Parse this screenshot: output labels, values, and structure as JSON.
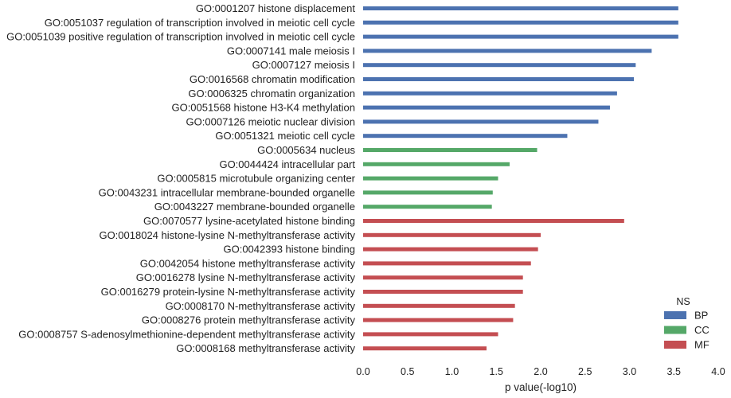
{
  "chart_data": {
    "type": "bar",
    "orientation": "horizontal",
    "xlabel": "p value(-log10)",
    "xlim": [
      0,
      4.0
    ],
    "xticks": [
      "0.0",
      "0.5",
      "1.0",
      "1.5",
      "2.0",
      "2.5",
      "3.0",
      "3.5",
      "4.0"
    ],
    "grid": false,
    "legend": {
      "title": "NS",
      "placement": "bottom-right",
      "entries": [
        {
          "name": "BP",
          "color": "#4c72b0"
        },
        {
          "name": "CC",
          "color": "#55a868"
        },
        {
          "name": "MF",
          "color": "#c44e52"
        }
      ]
    },
    "bars": [
      {
        "label": "GO:0001207 histone displacement",
        "value": 3.55,
        "group": "BP"
      },
      {
        "label": "GO:0051037 regulation of transcription involved in meiotic cell cycle",
        "value": 3.55,
        "group": "BP"
      },
      {
        "label": "GO:0051039 positive regulation of transcription involved in meiotic cell cycle",
        "value": 3.55,
        "group": "BP"
      },
      {
        "label": "GO:0007141 male meiosis I",
        "value": 3.25,
        "group": "BP"
      },
      {
        "label": "GO:0007127 meiosis I",
        "value": 3.07,
        "group": "BP"
      },
      {
        "label": "GO:0016568 chromatin modification",
        "value": 3.05,
        "group": "BP"
      },
      {
        "label": "GO:0006325 chromatin organization",
        "value": 2.86,
        "group": "BP"
      },
      {
        "label": "GO:0051568 histone H3-K4 methylation",
        "value": 2.78,
        "group": "BP"
      },
      {
        "label": "GO:0007126 meiotic nuclear division",
        "value": 2.65,
        "group": "BP"
      },
      {
        "label": "GO:0051321 meiotic cell cycle",
        "value": 2.3,
        "group": "BP"
      },
      {
        "label": "GO:0005634 nucleus",
        "value": 1.96,
        "group": "CC"
      },
      {
        "label": "GO:0044424 intracellular part",
        "value": 1.65,
        "group": "CC"
      },
      {
        "label": "GO:0005815 microtubule organizing center",
        "value": 1.52,
        "group": "CC"
      },
      {
        "label": "GO:0043231 intracellular membrane-bounded organelle",
        "value": 1.46,
        "group": "CC"
      },
      {
        "label": "GO:0043227 membrane-bounded organelle",
        "value": 1.45,
        "group": "CC"
      },
      {
        "label": "GO:0070577 lysine-acetylated histone binding",
        "value": 2.94,
        "group": "MF"
      },
      {
        "label": "GO:0018024 histone-lysine N-methyltransferase activity",
        "value": 2.0,
        "group": "MF"
      },
      {
        "label": "GO:0042393 histone binding",
        "value": 1.97,
        "group": "MF"
      },
      {
        "label": "GO:0042054 histone methyltransferase activity",
        "value": 1.89,
        "group": "MF"
      },
      {
        "label": "GO:0016278 lysine N-methyltransferase activity",
        "value": 1.8,
        "group": "MF"
      },
      {
        "label": "GO:0016279 protein-lysine N-methyltransferase activity",
        "value": 1.8,
        "group": "MF"
      },
      {
        "label": "GO:0008170 N-methyltransferase activity",
        "value": 1.71,
        "group": "MF"
      },
      {
        "label": "GO:0008276 protein methyltransferase activity",
        "value": 1.69,
        "group": "MF"
      },
      {
        "label": "GO:0008757 S-adenosylmethionine-dependent methyltransferase activity",
        "value": 1.52,
        "group": "MF"
      },
      {
        "label": "GO:0008168 methyltransferase activity",
        "value": 1.39,
        "group": "MF"
      }
    ]
  }
}
